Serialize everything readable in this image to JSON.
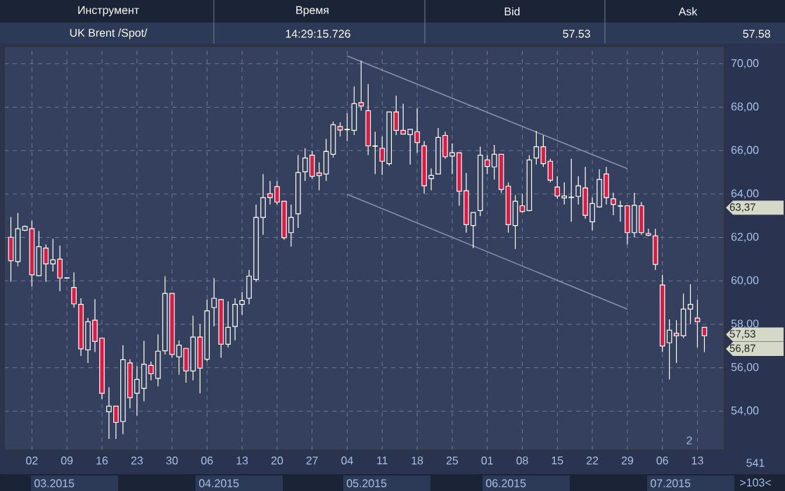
{
  "chart_data": {
    "type": "candlestick",
    "categories": [
      null,
      null,
      null,
      "02",
      null,
      null,
      null,
      null,
      "09",
      null,
      null,
      null,
      null,
      "16",
      null,
      null,
      null,
      null,
      "23",
      null,
      null,
      null,
      null,
      "30",
      null,
      null,
      null,
      null,
      "06",
      null,
      null,
      null,
      null,
      "13",
      null,
      null,
      null,
      null,
      "20",
      null,
      null,
      null,
      null,
      "27",
      null,
      null,
      null,
      null,
      "04",
      null,
      null,
      null,
      null,
      "11",
      null,
      null,
      null,
      null,
      "18",
      null,
      null,
      null,
      null,
      "25",
      null,
      null,
      null,
      null,
      "01",
      null,
      null,
      null,
      null,
      "08",
      null,
      null,
      null,
      null,
      "15",
      null,
      null,
      null,
      null,
      "22",
      null,
      null,
      null,
      null,
      "29",
      null,
      null,
      null,
      null,
      "06",
      null,
      null,
      null,
      null,
      "13",
      null
    ],
    "ohlc": [
      [
        62.01,
        62.94,
        59.96,
        60.93
      ],
      [
        60.89,
        63.13,
        60.67,
        62.4
      ],
      [
        62.33,
        62.55,
        62.29,
        62.51
      ],
      [
        62.4,
        62.77,
        59.74,
        60.28
      ],
      [
        60.24,
        62.29,
        60.24,
        61.58
      ],
      [
        61.51,
        61.68,
        59.96,
        60.78
      ],
      [
        60.78,
        61.94,
        60.43,
        60.97
      ],
      [
        61.0,
        61.62,
        59.52,
        60.13
      ],
      [
        60.13,
        60.17,
        60.11,
        60.14
      ],
      [
        59.7,
        60.39,
        58.77,
        58.94
      ],
      [
        58.92,
        59.2,
        56.54,
        56.87
      ],
      [
        56.82,
        58.29,
        56.22,
        58.12
      ],
      [
        58.19,
        59.16,
        56.72,
        57.21
      ],
      [
        57.36,
        57.36,
        54.56,
        54.82
      ],
      [
        53.97,
        55.1,
        52.72,
        54.23
      ],
      [
        54.23,
        54.23,
        52.72,
        53.48
      ],
      [
        53.52,
        57.04,
        52.94,
        56.37
      ],
      [
        56.22,
        56.39,
        54.13,
        54.62
      ],
      [
        54.82,
        56.07,
        53.8,
        55.46
      ],
      [
        55.05,
        57.24,
        54.45,
        56.16
      ],
      [
        56.11,
        56.28,
        55.42,
        55.72
      ],
      [
        55.51,
        57.54,
        55.14,
        56.76
      ],
      [
        56.78,
        60.22,
        56.61,
        59.42
      ],
      [
        59.42,
        59.42,
        56.46,
        56.61
      ],
      [
        56.5,
        57.26,
        55.68,
        57.04
      ],
      [
        56.89,
        56.89,
        55.31,
        55.85
      ],
      [
        55.85,
        58.4,
        55.42,
        57.41
      ],
      [
        57.41,
        58.01,
        54.82,
        55.98
      ],
      [
        56.39,
        59.14,
        56.29,
        58.62
      ],
      [
        58.77,
        60.13,
        57.9,
        59.2
      ],
      [
        59.14,
        59.14,
        56.46,
        57.08
      ],
      [
        57.08,
        59.05,
        56.93,
        57.86
      ],
      [
        57.9,
        59.2,
        57.26,
        58.92
      ],
      [
        58.92,
        59.48,
        58.44,
        59.09
      ],
      [
        59.2,
        60.5,
        58.92,
        60.22
      ],
      [
        60.06,
        63.52,
        59.96,
        62.92
      ],
      [
        62.92,
        64.92,
        62.12,
        63.84
      ],
      [
        64.02,
        64.6,
        63.52,
        63.84
      ],
      [
        64.34,
        64.6,
        63.52,
        63.63
      ],
      [
        63.67,
        63.67,
        61.9,
        61.99
      ],
      [
        62.22,
        63.52,
        61.58,
        62.92
      ],
      [
        63.09,
        65.79,
        62.44,
        64.99
      ],
      [
        65.03,
        66.11,
        64.6,
        65.66
      ],
      [
        65.79,
        66.0,
        64.71,
        64.82
      ],
      [
        64.97,
        65.46,
        64.17,
        64.85
      ],
      [
        64.92,
        66.54,
        64.6,
        65.96
      ],
      [
        65.83,
        67.34,
        65.68,
        67.19
      ],
      [
        67.11,
        67.3,
        66.65,
        66.95
      ],
      [
        66.96,
        67.73,
        66.44,
        66.98
      ],
      [
        66.93,
        68.96,
        66.72,
        68.16
      ],
      [
        68.21,
        70.15,
        67.84,
        68.06
      ],
      [
        67.84,
        69.07,
        65.79,
        66.22
      ],
      [
        66.2,
        66.87,
        64.92,
        66.22
      ],
      [
        66.11,
        66.65,
        64.88,
        65.51
      ],
      [
        65.4,
        67.78,
        65.31,
        67.78
      ],
      [
        67.78,
        68.53,
        66.72,
        66.93
      ],
      [
        66.93,
        68.16,
        66.76,
        66.76
      ],
      [
        66.74,
        66.98,
        65.36,
        66.98
      ],
      [
        66.87,
        67.95,
        65.9,
        66.37
      ],
      [
        66.22,
        66.44,
        64.02,
        64.38
      ],
      [
        64.71,
        65.18,
        64.17,
        64.86
      ],
      [
        64.92,
        67.04,
        64.92,
        66.61
      ],
      [
        66.7,
        66.87,
        65.62,
        65.72
      ],
      [
        65.75,
        66.33,
        64.92,
        65.9
      ],
      [
        65.9,
        65.9,
        63.46,
        64.13
      ],
      [
        64.15,
        64.97,
        62.22,
        62.59
      ],
      [
        62.55,
        63.15,
        61.51,
        63.15
      ],
      [
        63.24,
        66.18,
        62.98,
        65.79
      ],
      [
        65.57,
        65.79,
        64.92,
        65.27
      ],
      [
        65.25,
        66.26,
        64.67,
        65.83
      ],
      [
        65.83,
        65.83,
        64.06,
        64.21
      ],
      [
        64.36,
        64.54,
        62.22,
        62.59
      ],
      [
        62.55,
        63.95,
        61.47,
        63.67
      ],
      [
        63.46,
        64.02,
        63.15,
        63.2
      ],
      [
        63.24,
        65.79,
        63.2,
        65.57
      ],
      [
        65.66,
        66.91,
        65.36,
        66.18
      ],
      [
        66.18,
        66.7,
        65.25,
        65.4
      ],
      [
        65.51,
        65.62,
        64.54,
        64.64
      ],
      [
        64.32,
        64.82,
        63.78,
        63.91
      ],
      [
        63.82,
        64.54,
        63.52,
        63.91
      ],
      [
        63.84,
        65.62,
        62.72,
        63.86
      ],
      [
        63.89,
        64.82,
        63.52,
        64.38
      ],
      [
        64.28,
        65.25,
        62.87,
        63.02
      ],
      [
        62.72,
        63.84,
        62.33,
        63.56
      ],
      [
        63.41,
        65.14,
        63.37,
        64.67
      ],
      [
        64.92,
        65.25,
        63.52,
        63.84
      ],
      [
        63.78,
        64.06,
        63.02,
        63.52
      ],
      [
        63.44,
        63.69,
        62.72,
        63.46
      ],
      [
        63.46,
        63.46,
        61.68,
        62.22
      ],
      [
        62.22,
        64.06,
        62.01,
        63.48
      ],
      [
        63.46,
        63.63,
        62.12,
        62.22
      ],
      [
        62.18,
        62.4,
        62.05,
        62.1
      ],
      [
        62.07,
        62.4,
        60.5,
        60.76
      ],
      [
        59.81,
        60.28,
        56.72,
        57.0
      ],
      [
        57.15,
        58.23,
        55.46,
        57.73
      ],
      [
        57.58,
        58.19,
        56.22,
        57.47
      ],
      [
        57.47,
        59.42,
        57.36,
        58.7
      ],
      [
        58.7,
        59.85,
        58.01,
        58.92
      ],
      [
        58.29,
        59.14,
        56.93,
        58.12
      ],
      [
        57.86,
        57.86,
        56.72,
        57.47
      ]
    ],
    "series": [
      {
        "type": "line",
        "color": "#8591ab",
        "x": [
          "04",
          "29"
        ],
        "values": [
          70.36,
          65.17
        ]
      },
      {
        "type": "line",
        "color": "#8591ab",
        "x": [
          "04",
          "29"
        ],
        "values": [
          63.99,
          58.7
        ]
      }
    ],
    "ylim": [
      52.2,
      70.8
    ],
    "yticks": [
      {
        "value": 54,
        "label": "54,00"
      },
      {
        "value": 56,
        "label": "56,00"
      },
      {
        "value": 58,
        "label": "58,00"
      },
      {
        "value": 60,
        "label": "60,00"
      },
      {
        "value": 62,
        "label": "62,00"
      },
      {
        "value": 64,
        "label": "64,00"
      },
      {
        "value": 66,
        "label": "66,00"
      },
      {
        "value": 68,
        "label": "68,00"
      },
      {
        "value": 70,
        "label": "70,00"
      },
      {
        "value": 63.37,
        "label": "63,37"
      },
      {
        "value": 57.53,
        "label": "57,53"
      },
      {
        "value": 56.87,
        "label": "56,87"
      }
    ],
    "grid": true,
    "annotations": [
      "Инструмент",
      "Время",
      "Bid",
      "Ask",
      "UK Brent /Spot/",
      "14:29:15.726",
      "57.53",
      "57.58",
      "2",
      "541",
      ">103<",
      "03.2015",
      "04.2015",
      "05.2015",
      "06.2015",
      "07.2015"
    ]
  }
}
